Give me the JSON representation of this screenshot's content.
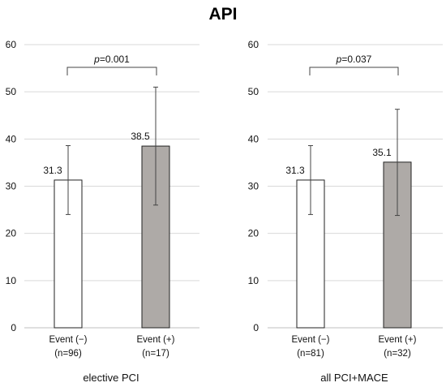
{
  "title": "API",
  "chart_data": [
    {
      "type": "bar",
      "label": "elective PCI",
      "categories": [
        "Event (−)",
        "Event (+)"
      ],
      "category_sublabels": [
        "(n=96)",
        "(n=17)"
      ],
      "values": [
        31.3,
        38.5
      ],
      "value_labels": [
        "31.3",
        "38.5"
      ],
      "error_low": [
        24.0,
        26.0
      ],
      "error_high": [
        38.6,
        51.0
      ],
      "bar_colors": [
        "#ffffff",
        "#aeaaa7"
      ],
      "yticks": [
        "0",
        "10",
        "20",
        "30",
        "40",
        "50",
        "60"
      ],
      "ylim": [
        0,
        60
      ],
      "grid": true,
      "p_prefix": "p",
      "p_value": "=0.001"
    },
    {
      "type": "bar",
      "label": "all PCI+MACE",
      "categories": [
        "Event (−)",
        "Event (+)"
      ],
      "category_sublabels": [
        "(n=81)",
        "(n=32)"
      ],
      "values": [
        31.3,
        35.1
      ],
      "value_labels": [
        "31.3",
        "35.1"
      ],
      "error_low": [
        24.0,
        23.8
      ],
      "error_high": [
        38.6,
        46.3
      ],
      "bar_colors": [
        "#ffffff",
        "#aeaaa7"
      ],
      "yticks": [
        "0",
        "10",
        "20",
        "30",
        "40",
        "50",
        "60"
      ],
      "ylim": [
        0,
        60
      ],
      "grid": true,
      "p_prefix": "p",
      "p_value": "=0.037"
    }
  ]
}
